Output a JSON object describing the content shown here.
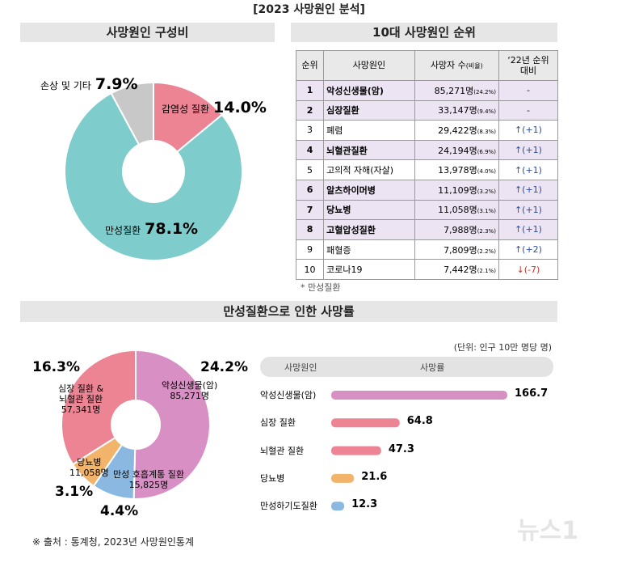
{
  "title": "[2023 사망원인 분석]",
  "sections": [
    "사망원인 구성비",
    "10대 사망원인 순위",
    "만성질환으로 인한 사망률"
  ],
  "chart_data": [
    {
      "type": "pie",
      "donut": true,
      "categories": [
        "감염성 질환",
        "만성질환",
        "손상 및 기타"
      ],
      "values": [
        14.0,
        78.1,
        7.9
      ],
      "value_labels": [
        "14.0%",
        "78.1%",
        "7.9%"
      ],
      "colors": [
        "#ec8494",
        "#7fcccc",
        "#c8c8c8"
      ]
    },
    {
      "type": "pie",
      "donut": true,
      "categories": [
        "악성신생물(암)",
        "만성 호흡계통 질환",
        "당뇨병",
        "심장 질환 &\n뇌혈관 질환"
      ],
      "values": [
        24.2,
        4.4,
        3.1,
        16.3
      ],
      "value_labels": [
        "24.2%",
        "4.4%",
        "3.1%",
        "16.3%"
      ],
      "counts": [
        85271,
        15825,
        11058,
        57341
      ],
      "count_labels": [
        "85,271명",
        "15,825명",
        "11,058명",
        "57,341명"
      ],
      "colors": [
        "#d88fc4",
        "#8ab8e0",
        "#f2b46a",
        "#ec8494"
      ]
    },
    {
      "type": "hbar",
      "unit": "(단위: 인구 10만 명당 명)",
      "headers": [
        "사망원인",
        "사망률"
      ],
      "categories": [
        "악성신생물(암)",
        "심장 질환",
        "뇌혈관 질환",
        "당뇨병",
        "만성하기도질환"
      ],
      "values": [
        166.7,
        64.8,
        47.3,
        21.6,
        12.3
      ],
      "colors": [
        "#d88fc4",
        "#ec8494",
        "#ec8494",
        "#f2b46a",
        "#8ab8e0"
      ]
    }
  ],
  "table": {
    "columns": [
      "순위",
      "사망원인",
      "사망자 수",
      "‘22년 순위\n대비"
    ],
    "column_note": "(비율)",
    "rows": [
      {
        "rank": "1",
        "cause": "악성신생물(암)",
        "deaths": "85,271명",
        "ratio": "(24.2%)",
        "change": "-",
        "trend": null,
        "chronic": true
      },
      {
        "rank": "2",
        "cause": "심장질환",
        "deaths": "33,147명",
        "ratio": "(9.4%)",
        "change": "-",
        "trend": null,
        "chronic": true
      },
      {
        "rank": "3",
        "cause": "폐렴",
        "deaths": "29,422명",
        "ratio": "(8.3%)",
        "change": "↑(+1)",
        "trend": "up",
        "chronic": false
      },
      {
        "rank": "4",
        "cause": "뇌혈관질환",
        "deaths": "24,194명",
        "ratio": "(6.9%)",
        "change": "↑(+1)",
        "trend": "up",
        "chronic": true
      },
      {
        "rank": "5",
        "cause": "고의적 자해(자살)",
        "deaths": "13,978명",
        "ratio": "(4.0%)",
        "change": "↑(+1)",
        "trend": "up",
        "chronic": false
      },
      {
        "rank": "6",
        "cause": "알츠하이머병",
        "deaths": "11,109명",
        "ratio": "(3.2%)",
        "change": "↑(+1)",
        "trend": "up",
        "chronic": true
      },
      {
        "rank": "7",
        "cause": "당뇨병",
        "deaths": "11,058명",
        "ratio": "(3.1%)",
        "change": "↑(+1)",
        "trend": "up",
        "chronic": true
      },
      {
        "rank": "8",
        "cause": "고혈압성질환",
        "deaths": "7,988명",
        "ratio": "(2.3%)",
        "change": "↑(+1)",
        "trend": "up",
        "chronic": true
      },
      {
        "rank": "9",
        "cause": "패혈증",
        "deaths": "7,809명",
        "ratio": "(2.2%)",
        "change": "↑(+2)",
        "trend": "up",
        "chronic": false
      },
      {
        "rank": "10",
        "cause": "코로나19",
        "deaths": "7,442명",
        "ratio": "(2.1%)",
        "change": "↓(-7)",
        "trend": "down",
        "chronic": false
      }
    ],
    "footnote": "* 만성질환"
  },
  "source": "※ 출처 : 통계청, 2023년 사망원인통계",
  "watermark": "뉴스1"
}
